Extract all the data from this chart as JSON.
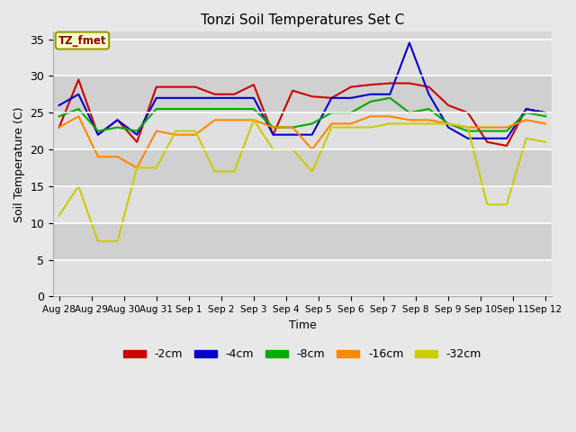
{
  "title": "Tonzi Soil Temperatures Set C",
  "xlabel": "Time",
  "ylabel": "Soil Temperature (C)",
  "annotation": "TZ_fmet",
  "ylim": [
    0,
    36
  ],
  "yticks": [
    0,
    5,
    10,
    15,
    20,
    25,
    30,
    35
  ],
  "x_labels": [
    "Aug 28",
    "Aug 29",
    "Aug 30",
    "Aug 31",
    "Sep 1",
    "Sep 2",
    "Sep 3",
    "Sep 4",
    "Sep 5",
    "Sep 6",
    "Sep 7",
    "Sep 8",
    "Sep 9",
    "Sep 10",
    "Sep 11",
    "Sep 12"
  ],
  "n_labels": 16,
  "series": {
    "-2cm": {
      "color": "#cc0000",
      "data": [
        23.0,
        29.5,
        22.0,
        24.0,
        21.0,
        28.5,
        28.5,
        28.5,
        27.5,
        27.5,
        28.8,
        22.0,
        28.0,
        27.2,
        27.0,
        28.5,
        28.8,
        29.0,
        29.0,
        28.5,
        26.0,
        25.0,
        21.0,
        20.5,
        25.5,
        25.0
      ]
    },
    "-4cm": {
      "color": "#0000cc",
      "data": [
        26.0,
        27.5,
        22.0,
        24.0,
        22.0,
        27.0,
        27.0,
        27.0,
        27.0,
        27.0,
        27.0,
        22.0,
        22.0,
        22.0,
        27.0,
        27.0,
        27.5,
        27.5,
        34.5,
        27.5,
        23.0,
        21.5,
        21.5,
        21.5,
        25.5,
        25.0
      ]
    },
    "-8cm": {
      "color": "#00aa00",
      "data": [
        24.5,
        25.5,
        22.5,
        23.0,
        22.5,
        25.5,
        25.5,
        25.5,
        25.5,
        25.5,
        25.5,
        23.0,
        23.0,
        23.5,
        25.0,
        25.0,
        26.5,
        27.0,
        25.0,
        25.5,
        23.5,
        22.5,
        22.5,
        22.5,
        25.0,
        24.5
      ]
    },
    "-16cm": {
      "color": "#ff8800",
      "data": [
        23.0,
        24.5,
        19.0,
        19.0,
        17.5,
        22.5,
        22.0,
        22.0,
        24.0,
        24.0,
        24.0,
        23.0,
        23.0,
        20.0,
        23.5,
        23.5,
        24.5,
        24.5,
        24.0,
        24.0,
        23.5,
        23.0,
        23.0,
        23.0,
        24.0,
        23.5
      ]
    },
    "-32cm": {
      "color": "#cccc00",
      "data": [
        11.0,
        15.0,
        7.5,
        7.5,
        17.5,
        17.5,
        22.5,
        22.5,
        17.0,
        17.0,
        24.0,
        20.0,
        20.0,
        17.0,
        23.0,
        23.0,
        23.0,
        23.5,
        23.5,
        23.5,
        23.5,
        23.0,
        12.5,
        12.5,
        21.5,
        21.0
      ]
    }
  },
  "tick_positions": [
    0,
    2,
    4,
    6,
    8,
    10,
    12,
    14,
    16,
    18,
    20,
    22,
    24,
    26,
    28,
    30
  ],
  "bg_color": "#e8e8e8",
  "plot_bg_light": "#dcdcdc",
  "plot_bg_dark": "#c8c8c8",
  "legend_entries": [
    "-2cm",
    "-4cm",
    "-8cm",
    "-16cm",
    "-32cm"
  ],
  "legend_colors": [
    "#cc0000",
    "#0000cc",
    "#00aa00",
    "#ff8800",
    "#cccc00"
  ],
  "figsize": [
    6.4,
    4.8
  ],
  "dpi": 100
}
